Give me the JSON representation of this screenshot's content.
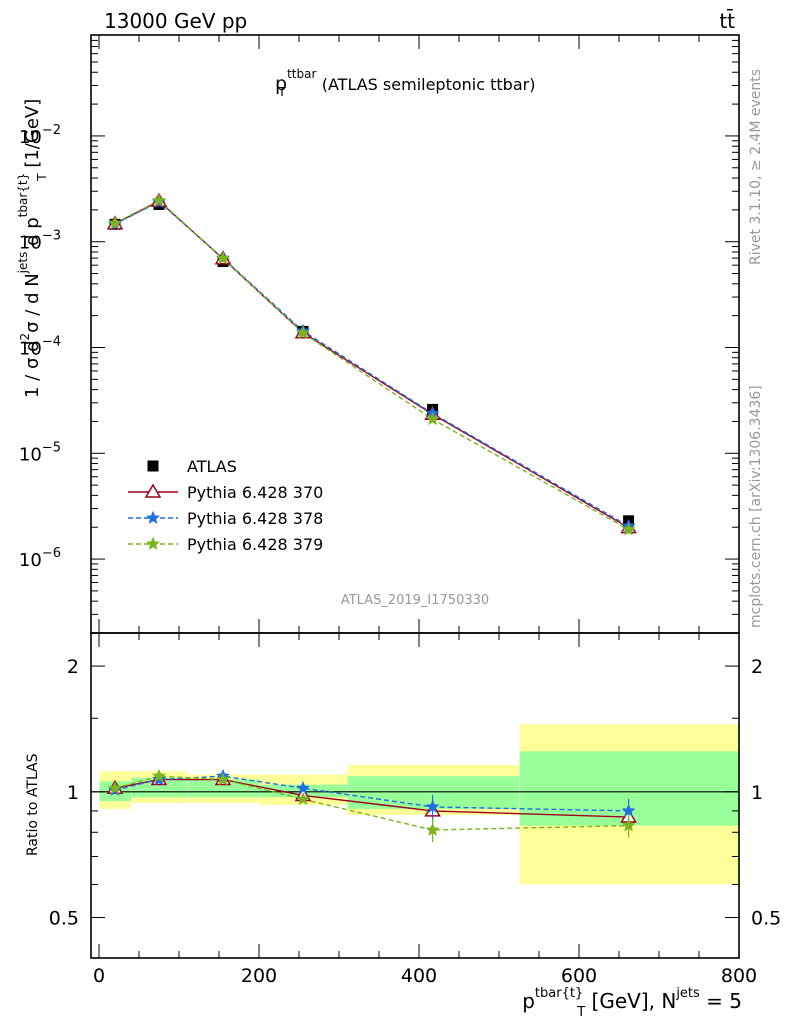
{
  "header": {
    "energy_label": "13000 GeV pp",
    "process_label": "tt̄"
  },
  "side_labels": {
    "rivet": "Rivet 3.1.10, ≥ 2.4M events",
    "mcplots": "mcplots.cern.ch [arXiv:1306.3436]"
  },
  "colors": {
    "atlas": "#000000",
    "p370": "#a0001e",
    "p378": "#1f6fe0",
    "p379": "#7ab520",
    "band_yellow": "#ffff99",
    "band_green": "#99ff99"
  },
  "chart_data": [
    {
      "type": "scatter",
      "title": "p_T^ttbar (ATLAS semileptonic ttbar)",
      "title_parts": {
        "main": "p",
        "sup": "ttbar",
        "sub": "T",
        "rest": "(ATLAS semileptonic ttbar)"
      },
      "ylabel": "1 / σ d²σ / d N^jets d p^tbar{t}_T [1/GeV]",
      "ylabel_parts": {
        "a": "1 / σ d",
        "a_sup": "2",
        "b": "σ / d N",
        "b_sup": "jets",
        "c": " d p",
        "c_sup": "tbar{t}",
        "c_sub": "T",
        "d": " [1/GeV]"
      },
      "yscale": "log",
      "ylim": [
        2e-07,
        0.09
      ],
      "xlim": [
        -10,
        800
      ],
      "ytick_labels": [
        {
          "mant": "10",
          "exp": "−6",
          "value": 1e-06
        },
        {
          "mant": "10",
          "exp": "−5",
          "value": 1e-05
        },
        {
          "mant": "10",
          "exp": "−4",
          "value": 0.0001
        },
        {
          "mant": "10",
          "exp": "−3",
          "value": 0.001
        },
        {
          "mant": "10",
          "exp": "−2",
          "value": 0.01
        }
      ],
      "watermark": "ATLAS_2019_I1750330",
      "x": [
        20,
        75,
        155,
        255,
        417,
        662
      ],
      "series": [
        {
          "name": "ATLAS",
          "key": "atlas",
          "marker": "square",
          "values": [
            0.00146,
            0.00225,
            0.00065,
            0.000142,
            2.6e-05,
            2.3e-06
          ]
        },
        {
          "name": "Pythia 6.428 370",
          "key": "p370",
          "marker": "triangle",
          "line": "solid",
          "values": [
            0.00148,
            0.00242,
            0.00069,
            0.000138,
            2.34e-05,
            1.98e-06
          ]
        },
        {
          "name": "Pythia 6.428 378",
          "key": "p378",
          "marker": "star",
          "line": "dashed",
          "values": [
            0.00147,
            0.00238,
            0.0007,
            0.000143,
            2.38e-05,
            2.05e-06
          ]
        },
        {
          "name": "Pythia 6.428 379",
          "key": "p379",
          "marker": "star",
          "line": "dashed",
          "values": [
            0.0015,
            0.00245,
            0.000695,
            0.000137,
            2.1e-05,
            1.9e-06
          ]
        }
      ],
      "legend": "bottom-left"
    },
    {
      "type": "scatter",
      "ylabel": "Ratio to ATLAS",
      "yscale": "log",
      "ylim": [
        0.4,
        2.4
      ],
      "yticks": [
        {
          "label": "0.5",
          "value": 0.5
        },
        {
          "label": "1",
          "value": 1
        },
        {
          "label": "2",
          "value": 2
        }
      ],
      "xlim": [
        -10,
        800
      ],
      "xticks": [
        0,
        200,
        400,
        600,
        800
      ],
      "xtick_labels": [
        "0",
        "200",
        "400",
        "600",
        "800"
      ],
      "xlabel": "p^tbar{t}_T [GeV], N^jets = 5",
      "xlabel_parts": {
        "a": "p",
        "a_sup": "tbar{t}",
        "a_sub": "T",
        "b": " [GeV], N",
        "b_sup": "jets",
        "c": " = 5"
      },
      "bins": [
        {
          "lo": 0,
          "hi": 40,
          "stat": [
            0.95,
            1.06
          ],
          "total": [
            0.91,
            1.12
          ]
        },
        {
          "lo": 40,
          "hi": 110,
          "stat": [
            0.97,
            1.08
          ],
          "total": [
            0.94,
            1.12
          ]
        },
        {
          "lo": 110,
          "hi": 200,
          "stat": [
            0.97,
            1.07
          ],
          "total": [
            0.94,
            1.1
          ]
        },
        {
          "lo": 200,
          "hi": 310,
          "stat": [
            0.97,
            1.04
          ],
          "total": [
            0.93,
            1.1
          ]
        },
        {
          "lo": 310,
          "hi": 525,
          "stat": [
            0.91,
            1.09
          ],
          "total": [
            0.88,
            1.16
          ]
        },
        {
          "lo": 525,
          "hi": 800,
          "stat": [
            0.83,
            1.25
          ],
          "total": [
            0.6,
            1.45
          ]
        }
      ],
      "x": [
        20,
        75,
        155,
        255,
        417,
        662
      ],
      "series": [
        {
          "name": "Pythia 6.428 370",
          "key": "p370",
          "marker": "triangle",
          "line": "solid",
          "values": [
            1.02,
            1.07,
            1.07,
            0.98,
            0.9,
            0.87
          ]
        },
        {
          "name": "Pythia 6.428 378",
          "key": "p378",
          "marker": "star",
          "line": "dashed",
          "values": [
            1.01,
            1.07,
            1.09,
            1.02,
            0.92,
            0.9
          ]
        },
        {
          "name": "Pythia 6.428 379",
          "key": "p379",
          "marker": "star",
          "line": "dashed",
          "values": [
            1.02,
            1.09,
            1.07,
            0.96,
            0.81,
            0.83
          ]
        }
      ]
    }
  ]
}
